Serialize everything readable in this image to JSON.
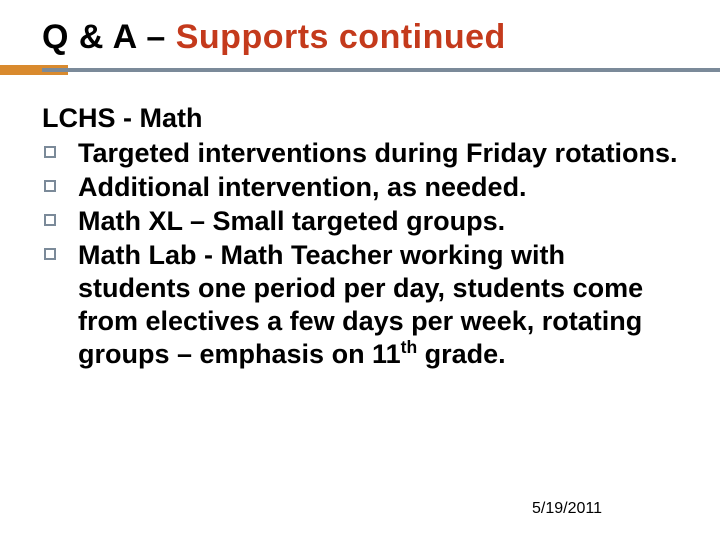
{
  "title_plain": "Q & A – ",
  "title_accent": "Supports continued",
  "subhead": "LCHS - Math",
  "bullets": [
    "Targeted interventions during Friday rotations.",
    "Additional intervention, as needed.",
    "Math XL – Small targeted groups.",
    "Math Lab -  Math Teacher working with students one period per day, students come from electives a few days per week, rotating groups – emphasis on 11"
  ],
  "bullet4_suffix_super": "th",
  "bullet4_suffix_tail": " grade.",
  "footer_date": "5/19/2011",
  "colors": {
    "title_accent": "#c43a1c",
    "rule_accent": "#d98a2e",
    "rule_line": "#7b8a99",
    "bullet_border": "#7b8a99",
    "background": "#ffffff",
    "text": "#000000"
  },
  "typography": {
    "title_fontsize": 34,
    "body_fontsize": 27,
    "footer_fontsize": 16,
    "font_family": "Arial",
    "weight": "bold"
  },
  "layout": {
    "slide_width": 720,
    "slide_height": 540,
    "padding_x": 42
  }
}
